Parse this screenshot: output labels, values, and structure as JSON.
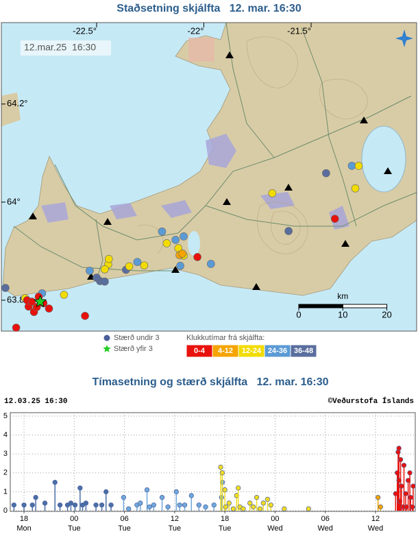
{
  "map": {
    "title": "Staðsetning skjálfta   12. mar. 16:30",
    "timestamp": "12.mar.25  16:30",
    "lonlim": [
      -22.944,
      -21.008
    ],
    "latlim": [
      63.737,
      64.366
    ],
    "lonticks": [
      {
        "value": -22.5,
        "label": "-22.5°"
      },
      {
        "value": -22,
        "label": "-22°"
      },
      {
        "value": -21.5,
        "label": "-21.5°"
      }
    ],
    "latticks": [
      {
        "value": 64.2,
        "label": "64.2°"
      },
      {
        "value": 64,
        "label": "64°"
      },
      {
        "value": 63.8,
        "label": "63.8°"
      }
    ],
    "scale_bar": {
      "unit": "km",
      "ticks": [
        0,
        10,
        20
      ]
    },
    "small_label": "Stærð undir 3",
    "small_color": "#4a5f9a",
    "large_label": "Stærð yfir 3",
    "large_color": "#22cc22",
    "large_quakes": [
      {
        "lon": -22.763,
        "lat": 63.797
      }
    ],
    "age_title": "Klukkutímar frá skjálfta:",
    "age_classes": [
      {
        "label": "0-4",
        "color": "#e8120c",
        "quakes": [
          {
            "lon": -21.389,
            "lat": 63.966
          },
          {
            "lon": -22.03,
            "lat": 63.888
          },
          {
            "lon": -22.817,
            "lat": 63.787
          },
          {
            "lon": -22.77,
            "lat": 63.807
          },
          {
            "lon": -22.748,
            "lat": 63.794
          },
          {
            "lon": -22.792,
            "lat": 63.776
          },
          {
            "lon": -22.722,
            "lat": 63.783
          },
          {
            "lon": -22.824,
            "lat": 63.8
          },
          {
            "lon": -22.554,
            "lat": 63.768
          },
          {
            "lon": -22.875,
            "lat": 63.744
          },
          {
            "lon": -22.779,
            "lat": 63.786
          },
          {
            "lon": -22.802,
            "lat": 63.797
          }
        ]
      },
      {
        "label": "4-12",
        "color": "#f5a400",
        "quakes": [
          {
            "lon": -22.113,
            "lat": 63.892
          },
          {
            "lon": -22.1,
            "lat": 63.895
          }
        ]
      },
      {
        "label": "12-24",
        "color": "#f2dc00",
        "quakes": [
          {
            "lon": -21.278,
            "lat": 64.074
          },
          {
            "lon": -21.294,
            "lat": 64.028
          },
          {
            "lon": -21.681,
            "lat": 64.018
          },
          {
            "lon": -22.173,
            "lat": 63.916
          },
          {
            "lon": -22.119,
            "lat": 63.906
          },
          {
            "lon": -22.094,
            "lat": 63.891
          },
          {
            "lon": -22.446,
            "lat": 63.873
          },
          {
            "lon": -22.462,
            "lat": 63.863
          },
          {
            "lon": -22.348,
            "lat": 63.869
          },
          {
            "lon": -22.278,
            "lat": 63.871
          },
          {
            "lon": -22.443,
            "lat": 63.884
          },
          {
            "lon": -22.652,
            "lat": 63.811
          },
          {
            "lon": -22.833,
            "lat": 63.804
          }
        ]
      },
      {
        "label": "24-36",
        "color": "#5b9bd5",
        "quakes": [
          {
            "lon": -21.31,
            "lat": 64.074
          },
          {
            "lon": -22.195,
            "lat": 63.94
          },
          {
            "lon": -22.094,
            "lat": 63.93
          },
          {
            "lon": -22.132,
            "lat": 63.923
          },
          {
            "lon": -22.11,
            "lat": 63.87
          },
          {
            "lon": -22.31,
            "lat": 63.878
          },
          {
            "lon": -22.532,
            "lat": 63.86
          },
          {
            "lon": -21.967,
            "lat": 63.874
          },
          {
            "lon": -22.754,
            "lat": 63.814
          }
        ]
      },
      {
        "label": "36-48",
        "color": "#5a6e9e",
        "quakes": [
          {
            "lon": -21.43,
            "lat": 64.059
          },
          {
            "lon": -21.605,
            "lat": 63.941
          },
          {
            "lon": -22.363,
            "lat": 63.862
          },
          {
            "lon": -22.484,
            "lat": 63.839
          },
          {
            "lon": -22.462,
            "lat": 63.838
          },
          {
            "lon": -22.925,
            "lat": 63.825
          },
          {
            "lon": -22.5,
            "lat": 63.846
          }
        ]
      }
    ]
  },
  "chart_data": {
    "type": "stem",
    "title": "Tímasetning og stærð skjálfta   12. mar. 16:30",
    "subtitle": "12.03.25 16:30",
    "credit": "©Veðurstofa Íslands",
    "xlim": [
      16.36,
      64.75
    ],
    "ylim": [
      0,
      5
    ],
    "yticks": [
      0,
      1,
      2,
      3,
      4,
      5
    ],
    "xticks": [
      {
        "value": 18,
        "label": "18"
      },
      {
        "value": 24,
        "label": "00"
      },
      {
        "value": 30,
        "label": "06"
      },
      {
        "value": 36,
        "label": "12"
      },
      {
        "value": 42,
        "label": "18"
      },
      {
        "value": 48,
        "label": "00"
      },
      {
        "value": 54,
        "label": "06"
      },
      {
        "value": 60,
        "label": "12"
      }
    ],
    "xtick_days": [
      "Mon",
      "Tue",
      "Tue",
      "Tue",
      "Tue",
      "Wed",
      "Wed",
      "Wed"
    ],
    "grid": true,
    "series": [
      {
        "color": "#4a6fa8",
        "x": [
          16.8,
          18.0,
          19.0,
          19.4,
          20.5,
          21.7,
          22.3,
          23.2,
          23.6,
          24.1,
          24.7,
          25.0,
          25.4,
          26.6,
          27.3,
          27.8,
          28.4
        ],
        "values": [
          0.3,
          0.3,
          0.3,
          0.7,
          0.4,
          1.5,
          0.3,
          0.3,
          0.4,
          0.3,
          1.2,
          0.3,
          0.4,
          0.3,
          0.3,
          1.0,
          0.3
        ]
      },
      {
        "color": "#6fa8dc",
        "x": [
          29.9,
          30.5,
          31.5,
          31.9,
          32.7,
          33.0,
          33.5,
          34.5,
          35.2,
          36.2,
          36.6,
          37.2,
          38.0,
          38.9,
          39.7,
          40.7,
          41.6,
          41.7
        ],
        "values": [
          0.7,
          0.1,
          0.3,
          0.4,
          1.1,
          0.2,
          0.3,
          0.7,
          0.2,
          1.0,
          0.3,
          0.3,
          0.8,
          0.3,
          0.2,
          0.3,
          0.7,
          1.5
        ]
      },
      {
        "color": "#f0dc20",
        "x": [
          41.5,
          41.7,
          42.0,
          42.1,
          42.5,
          43.0,
          43.4,
          43.6,
          43.8,
          44.2,
          45.0,
          45.4,
          45.8,
          46.2,
          46.6,
          47.1,
          47.5,
          49.1,
          52.0
        ],
        "values": [
          2.3,
          2.0,
          1.1,
          0.2,
          0.4,
          0.1,
          0.8,
          1.2,
          0.2,
          0.1,
          0.4,
          0.2,
          0.7,
          0.1,
          0.4,
          0.6,
          0.3,
          0.1,
          0.1
        ]
      },
      {
        "color": "#f5a400",
        "x": [
          60.3,
          60.6
        ],
        "values": [
          0.7,
          0.2
        ]
      },
      {
        "color": "#e8120c",
        "x": [
          62.4,
          62.6,
          62.7,
          62.8,
          62.8,
          62.9,
          63.0,
          63.1,
          63.3,
          63.4,
          63.6,
          63.7,
          63.9,
          64.1,
          64.2,
          64.4,
          64.5
        ],
        "values": [
          0.9,
          2.0,
          3.1,
          3.3,
          1.6,
          0.5,
          2.7,
          1.3,
          0.2,
          2.4,
          0.9,
          0.2,
          1.6,
          2.0,
          0.7,
          0.2,
          1.3
        ]
      }
    ]
  }
}
